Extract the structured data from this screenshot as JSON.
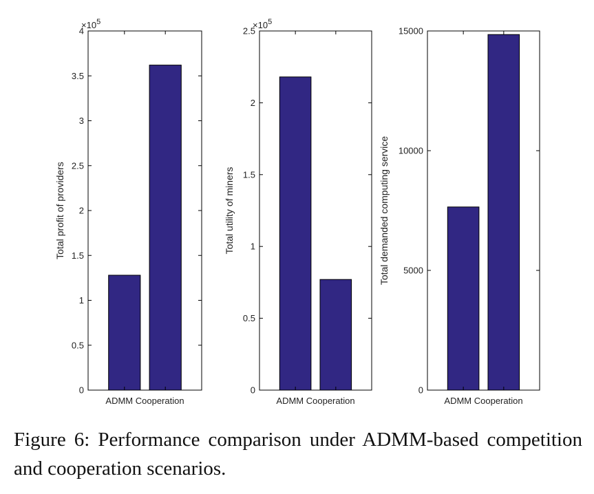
{
  "chart_data": [
    {
      "type": "bar",
      "categories": [
        "ADMM",
        "Cooperation"
      ],
      "values": [
        128000,
        362000
      ],
      "ylabel": "Total profit of providers",
      "xlabel": "ADMM Cooperation",
      "ylim": [
        0,
        400000
      ],
      "yticks": [
        0,
        0.5,
        1,
        1.5,
        2,
        2.5,
        3,
        3.5,
        4
      ],
      "ytick_labels": [
        "0",
        "0.5",
        "1",
        "1.5",
        "2",
        "2.5",
        "3",
        "3.5",
        "4"
      ],
      "multiplier": "×10",
      "multiplier_exp": "5",
      "bar_color": "#312783"
    },
    {
      "type": "bar",
      "categories": [
        "ADMM",
        "Cooperation"
      ],
      "values": [
        218000,
        77000
      ],
      "ylabel": "Total utility of miners",
      "xlabel": "ADMM Cooperation",
      "ylim": [
        0,
        250000
      ],
      "yticks": [
        0,
        0.5,
        1,
        1.5,
        2,
        2.5
      ],
      "ytick_labels": [
        "0",
        "0.5",
        "1",
        "1.5",
        "2",
        "2.5"
      ],
      "multiplier": "×10",
      "multiplier_exp": "5",
      "bar_color": "#312783"
    },
    {
      "type": "bar",
      "categories": [
        "ADMM",
        "Cooperation"
      ],
      "values": [
        7650,
        14850
      ],
      "ylabel": "Total demanded computing service",
      "xlabel": "ADMM Cooperation",
      "ylim": [
        0,
        15000
      ],
      "yticks": [
        0,
        5000,
        10000,
        15000
      ],
      "ytick_labels": [
        "0",
        "5000",
        "10000",
        "15000"
      ],
      "multiplier": "",
      "multiplier_exp": "",
      "bar_color": "#312783"
    }
  ],
  "caption": "Figure 6: Performance comparison under ADMM-based competition and cooperation scenarios."
}
